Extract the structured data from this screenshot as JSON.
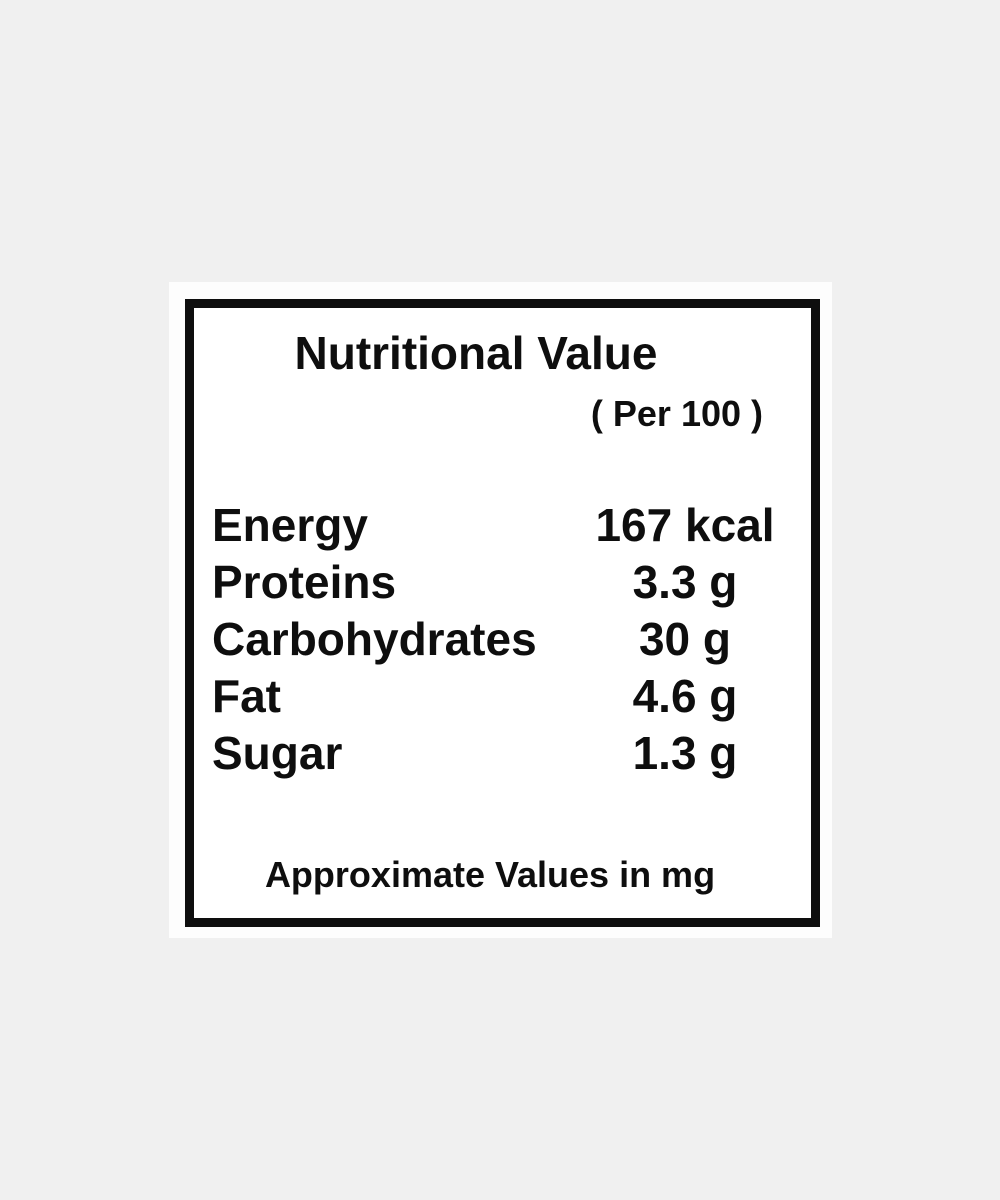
{
  "colors": {
    "background": "#f0f0f0",
    "card": "#fdfdfd",
    "border": "#0e0e0e",
    "text": "#0e0e0e"
  },
  "label": {
    "title": "Nutritional Value",
    "serving_note": "( Per 100 )",
    "rows": [
      {
        "name": "Energy",
        "value": "167 kcal"
      },
      {
        "name": "Proteins",
        "value": "3.3 g"
      },
      {
        "name": "Carbohydrates",
        "value": "30 g"
      },
      {
        "name": "Fat",
        "value": "4.6 g"
      },
      {
        "name": "Sugar",
        "value": "1.3 g"
      }
    ],
    "footer": "Approximate Values in mg"
  }
}
